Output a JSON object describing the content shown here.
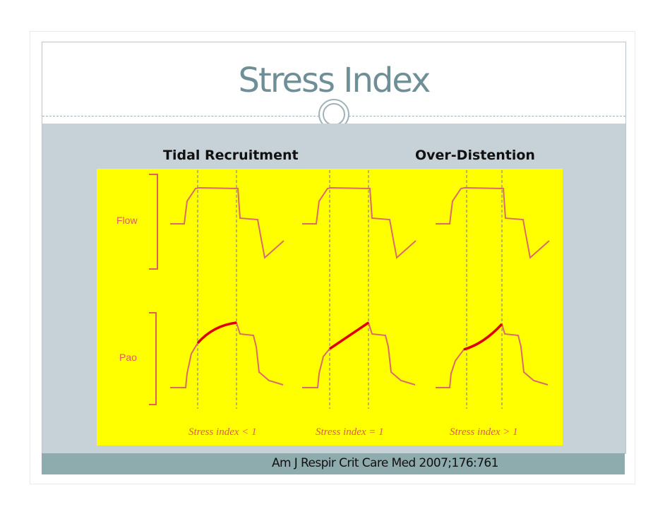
{
  "slide": {
    "title": "Stress Index",
    "left_heading": "Tidal Recruitment",
    "right_heading": "Over-Distention",
    "citation": "Am J Respir Crit Care Med 2007;176:761"
  },
  "figure": {
    "row_labels": [
      "Flow",
      "Pao"
    ],
    "panel_captions": [
      "Stress index < 1",
      "Stress index = 1",
      "Stress index > 1"
    ],
    "colors": {
      "background": "#ffff00",
      "trace": "#d96b6b",
      "highlight": "#e00000",
      "caption": "#e05a5a"
    }
  }
}
